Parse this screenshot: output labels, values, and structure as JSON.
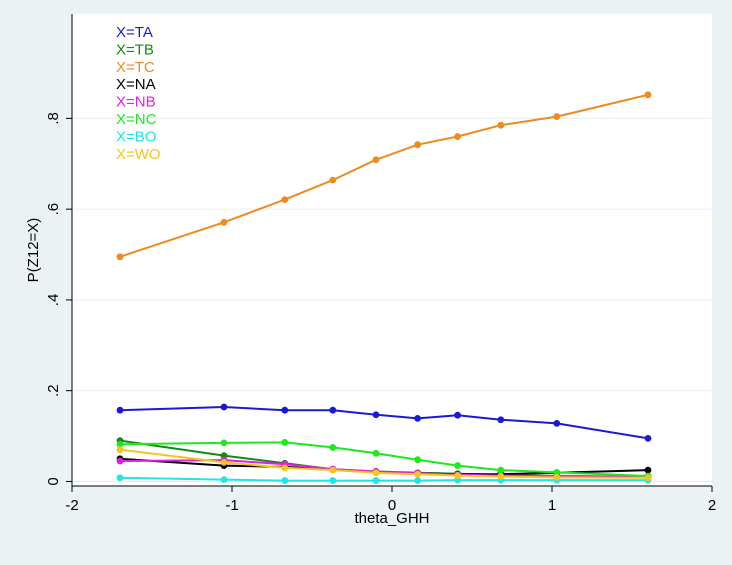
{
  "chart_data": {
    "type": "line",
    "xlabel": "theta_GHH",
    "ylabel": "P(Z12=X)",
    "xlim": [
      -2,
      2
    ],
    "ylim": [
      -0.01,
      1.03
    ],
    "x_ticks": [
      -2,
      -1,
      0,
      1,
      2
    ],
    "y_ticks": [
      0,
      0.2,
      0.4,
      0.6,
      0.8
    ],
    "y_tick_labels": [
      "0",
      ".2",
      ".4",
      ".6",
      ".8"
    ],
    "grid": "horizontal",
    "legend_position": "top-left",
    "x": [
      -1.7,
      -1.05,
      -0.67,
      -0.37,
      -0.1,
      0.16,
      0.41,
      0.68,
      1.03,
      1.6
    ],
    "series": [
      {
        "name": "X=TA",
        "color": "#1a1ad6",
        "values": [
          0.157,
          0.164,
          0.157,
          0.157,
          0.147,
          0.139,
          0.146,
          0.136,
          0.128,
          0.095
        ]
      },
      {
        "name": "X=TB",
        "color": "#138a13",
        "values": [
          0.09,
          0.057,
          0.04,
          0.027,
          0.022,
          0.019,
          0.017,
          0.015,
          0.012,
          0.01
        ]
      },
      {
        "name": "X=TC",
        "color": "#ef8a1e",
        "values": [
          0.495,
          0.571,
          0.621,
          0.664,
          0.709,
          0.742,
          0.76,
          0.785,
          0.804,
          0.852
        ]
      },
      {
        "name": "X=NA",
        "color": "#000000",
        "values": [
          0.05,
          0.035,
          0.032,
          0.026,
          0.021,
          0.018,
          0.016,
          0.016,
          0.019,
          0.025
        ]
      },
      {
        "name": "X=NB",
        "color": "#e31ee3",
        "values": [
          0.045,
          0.047,
          0.038,
          0.027,
          0.022,
          0.018,
          0.015,
          0.013,
          0.012,
          0.01
        ]
      },
      {
        "name": "X=NC",
        "color": "#1ee81e",
        "values": [
          0.082,
          0.085,
          0.086,
          0.075,
          0.062,
          0.048,
          0.035,
          0.025,
          0.02,
          0.012
        ]
      },
      {
        "name": "X=BO",
        "color": "#1ee6e6",
        "values": [
          0.008,
          0.004,
          0.002,
          0.002,
          0.002,
          0.002,
          0.003,
          0.003,
          0.003,
          0.003
        ]
      },
      {
        "name": "X=WO",
        "color": "#f5c518",
        "values": [
          0.07,
          0.042,
          0.03,
          0.025,
          0.019,
          0.016,
          0.013,
          0.011,
          0.009,
          0.008
        ]
      }
    ]
  }
}
